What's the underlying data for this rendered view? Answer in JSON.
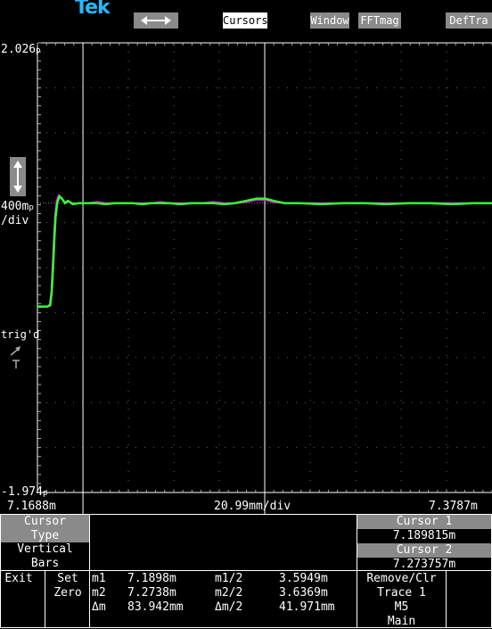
{
  "brand": "Tek",
  "menu": {
    "arrows_icon": "left-right-arrows-icon",
    "cursors": "Cursors",
    "window": "Window",
    "fftmag": "FFTmag",
    "deftra": "DefTra"
  },
  "scale": {
    "top": "2.026",
    "top_unit": "p",
    "mid": "400m",
    "mid_unit": "p",
    "per_div": "/div",
    "bottom": "-1.974",
    "bottom_unit": "p",
    "trig_label": "trig'd",
    "vertical_arrows_icon": "up-down-arrows-icon"
  },
  "xaxis": {
    "left": "7.1688m",
    "center": "20.99mm/div",
    "right": "7.3787m"
  },
  "bottom_panel": {
    "cursor_type_line1": "Cursor",
    "cursor_type_line2": "Type",
    "cursor_type_value_line1": "Vertical",
    "cursor_type_value_line2": "Bars",
    "exit": "Exit",
    "set_line1": "Set",
    "set_line2": "Zero",
    "m1_label": "m1",
    "m1_value": "7.1898m",
    "m1_half_label": "m1/2",
    "m1_half_value": "3.5949m",
    "m2_label": "m2",
    "m2_value": "7.2738m",
    "m2_half_label": "m2/2",
    "m2_half_value": "3.6369m",
    "dm_label": "Δm",
    "dm_value": "83.942mm",
    "dm_half_label": "Δm/2",
    "dm_half_value": "41.971mm",
    "cursor1_label": "Cursor 1",
    "cursor1_value": "7.189815m",
    "cursor2_label": "Cursor 2",
    "cursor2_value": "7.273757m",
    "remove_line1": "Remove/Clr",
    "remove_line2": "Trace 1",
    "remove_line3": "M5",
    "remove_line4": "Main"
  },
  "chart_data": {
    "type": "line",
    "title": "",
    "x_range": [
      7.1688,
      7.3787
    ],
    "y_range": [
      -1.974,
      2.026
    ],
    "cursors_x": [
      7.189815,
      7.273757
    ],
    "grid": true,
    "series": [
      {
        "color": "#ff00ff",
        "x": [
          7.1688,
          7.1711,
          7.1734,
          7.1745,
          7.1752,
          7.1758,
          7.1764,
          7.177,
          7.1777,
          7.1786,
          7.1799,
          7.1813,
          7.1827,
          7.185,
          7.1878,
          7.192,
          7.1962,
          7.2004,
          7.2046,
          7.2088,
          7.213,
          7.2172,
          7.2214,
          7.2256,
          7.2298,
          7.235,
          7.24,
          7.245,
          7.25,
          7.255,
          7.26,
          7.265,
          7.27,
          7.274,
          7.278,
          7.283,
          7.29,
          7.3,
          7.31,
          7.32,
          7.33,
          7.34,
          7.35,
          7.36,
          7.37,
          7.3787
        ],
        "y": [
          -0.32,
          -0.32,
          -0.32,
          -0.3,
          -0.18,
          0.05,
          0.3,
          0.5,
          0.62,
          0.67,
          0.64,
          0.61,
          0.62,
          0.6,
          0.6,
          0.6,
          0.61,
          0.6,
          0.6,
          0.6,
          0.6,
          0.6,
          0.6,
          0.61,
          0.6,
          0.6,
          0.6,
          0.6,
          0.61,
          0.6,
          0.6,
          0.61,
          0.63,
          0.63,
          0.61,
          0.6,
          0.6,
          0.6,
          0.6,
          0.6,
          0.6,
          0.6,
          0.6,
          0.6,
          0.6,
          0.6
        ]
      },
      {
        "color": "#33ff33",
        "x": [
          7.1688,
          7.1711,
          7.1734,
          7.1747,
          7.1754,
          7.176,
          7.1766,
          7.1772,
          7.178,
          7.179,
          7.1801,
          7.1815,
          7.1829,
          7.1852,
          7.188,
          7.192,
          7.1962,
          7.2004,
          7.2046,
          7.2088,
          7.213,
          7.2172,
          7.2214,
          7.2256,
          7.2298,
          7.235,
          7.24,
          7.245,
          7.25,
          7.255,
          7.26,
          7.265,
          7.27,
          7.274,
          7.278,
          7.283,
          7.29,
          7.3,
          7.31,
          7.32,
          7.33,
          7.34,
          7.35,
          7.36,
          7.37,
          7.3787
        ],
        "y": [
          -0.32,
          -0.32,
          -0.32,
          -0.31,
          -0.2,
          0.02,
          0.28,
          0.48,
          0.61,
          0.66,
          0.64,
          0.6,
          0.62,
          0.59,
          0.6,
          0.6,
          0.6,
          0.59,
          0.6,
          0.6,
          0.6,
          0.59,
          0.6,
          0.6,
          0.6,
          0.59,
          0.6,
          0.6,
          0.6,
          0.59,
          0.6,
          0.62,
          0.64,
          0.64,
          0.62,
          0.6,
          0.6,
          0.59,
          0.6,
          0.6,
          0.59,
          0.6,
          0.6,
          0.59,
          0.6,
          0.6
        ]
      }
    ]
  }
}
